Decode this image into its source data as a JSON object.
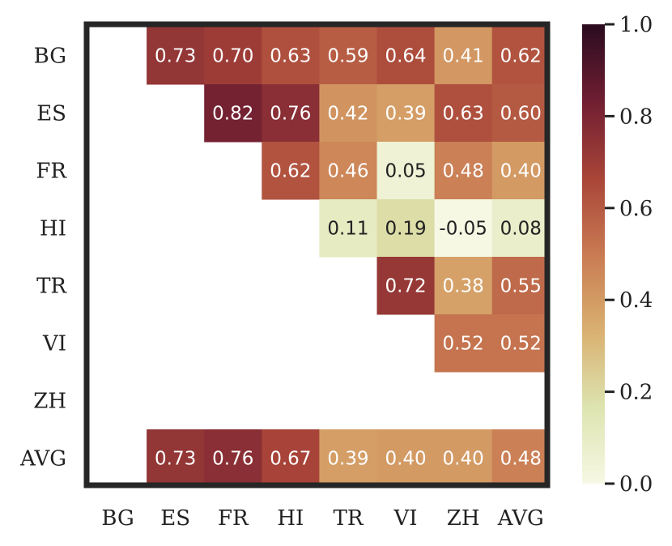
{
  "chart_data": {
    "type": "heatmap",
    "title": "",
    "xlabel": "",
    "ylabel": "",
    "x_labels": [
      "BG",
      "ES",
      "FR",
      "HI",
      "TR",
      "VI",
      "ZH",
      "AVG"
    ],
    "y_labels": [
      "BG",
      "ES",
      "FR",
      "HI",
      "TR",
      "VI",
      "ZH",
      "AVG"
    ],
    "values": [
      [
        null,
        0.73,
        0.7,
        0.63,
        0.59,
        0.64,
        0.41,
        0.62
      ],
      [
        null,
        null,
        0.82,
        0.76,
        0.42,
        0.39,
        0.63,
        0.6
      ],
      [
        null,
        null,
        null,
        0.62,
        0.46,
        0.05,
        0.48,
        0.4
      ],
      [
        null,
        null,
        null,
        null,
        0.11,
        0.19,
        -0.05,
        0.08
      ],
      [
        null,
        null,
        null,
        null,
        null,
        0.72,
        0.38,
        0.55
      ],
      [
        null,
        null,
        null,
        null,
        null,
        null,
        0.52,
        0.52
      ],
      [
        null,
        null,
        null,
        null,
        null,
        null,
        null,
        null
      ],
      [
        null,
        0.73,
        0.76,
        0.67,
        0.39,
        0.4,
        0.4,
        0.48
      ]
    ],
    "display_labels": [
      [
        null,
        "0.73",
        "0.70",
        "0.63",
        "0.59",
        "0.64",
        "0.41",
        "0.62"
      ],
      [
        null,
        null,
        "0.82",
        "0.76",
        "0.42",
        "0.39",
        "0.63",
        "0.60"
      ],
      [
        null,
        null,
        null,
        "0.62",
        "0.46",
        "0.05",
        "0.48",
        "0.40"
      ],
      [
        null,
        null,
        null,
        null,
        "0.11",
        "0.19",
        "-0.05",
        "0.08"
      ],
      [
        null,
        null,
        null,
        null,
        null,
        "0.72",
        "0.38",
        "0.55"
      ],
      [
        null,
        null,
        null,
        null,
        null,
        null,
        "0.52",
        "0.52"
      ],
      [
        null,
        null,
        null,
        null,
        null,
        null,
        null,
        null
      ],
      [
        null,
        "0.73",
        "0.76",
        "0.67",
        "0.39",
        "0.40",
        "0.40",
        "0.48"
      ]
    ],
    "colorbar": {
      "range": [
        0.0,
        1.0
      ],
      "ticks": [
        0.0,
        0.2,
        0.4,
        0.6,
        0.8,
        1.0
      ],
      "tick_labels": [
        "0.0",
        "0.2",
        "0.4",
        "0.6",
        "0.8",
        "1.0"
      ],
      "colormap_stops": [
        "#f7f8e4",
        "#dde4b0",
        "#d9b070",
        "#c97a52",
        "#a84438",
        "#701e32",
        "#2a0b1f"
      ]
    },
    "dark_text_color": "#222222",
    "light_text_color": "#ffffff",
    "frame_color": "#262626",
    "grid": false,
    "legend": "colorbar-right"
  }
}
